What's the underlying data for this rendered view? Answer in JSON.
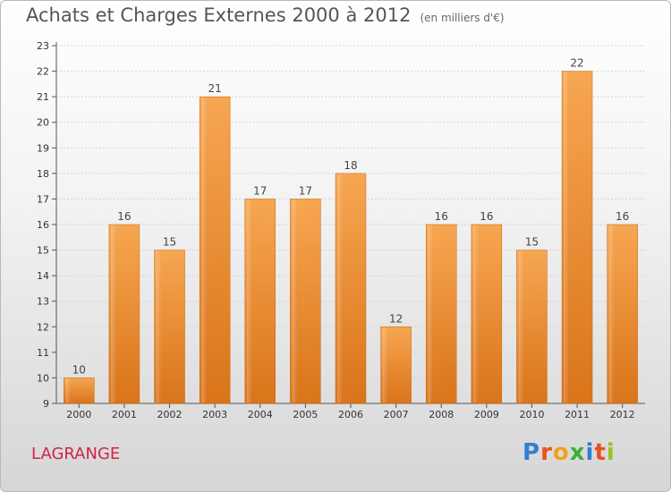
{
  "header": {
    "title": "Achats et Charges Externes 2000 à 2012",
    "subtitle": "(en milliers d'€)"
  },
  "footer": {
    "city": "LAGRANGE",
    "logo_letters": [
      "P",
      "r",
      "o",
      "x",
      "i",
      "t",
      "i"
    ]
  },
  "chart_data": {
    "type": "bar",
    "title": "Achats et Charges Externes 2000 à 2012",
    "subtitle": "(en milliers d'€)",
    "categories": [
      "2000",
      "2001",
      "2002",
      "2003",
      "2004",
      "2005",
      "2006",
      "2007",
      "2008",
      "2009",
      "2010",
      "2011",
      "2012"
    ],
    "values": [
      10,
      16,
      15,
      21,
      17,
      17,
      18,
      12,
      16,
      16,
      15,
      22,
      16
    ],
    "ylim": [
      9,
      23
    ],
    "yticks": [
      9,
      10,
      11,
      12,
      13,
      14,
      15,
      16,
      17,
      18,
      19,
      20,
      21,
      22,
      23
    ],
    "grid": true,
    "bar_color": "#f0922e"
  }
}
